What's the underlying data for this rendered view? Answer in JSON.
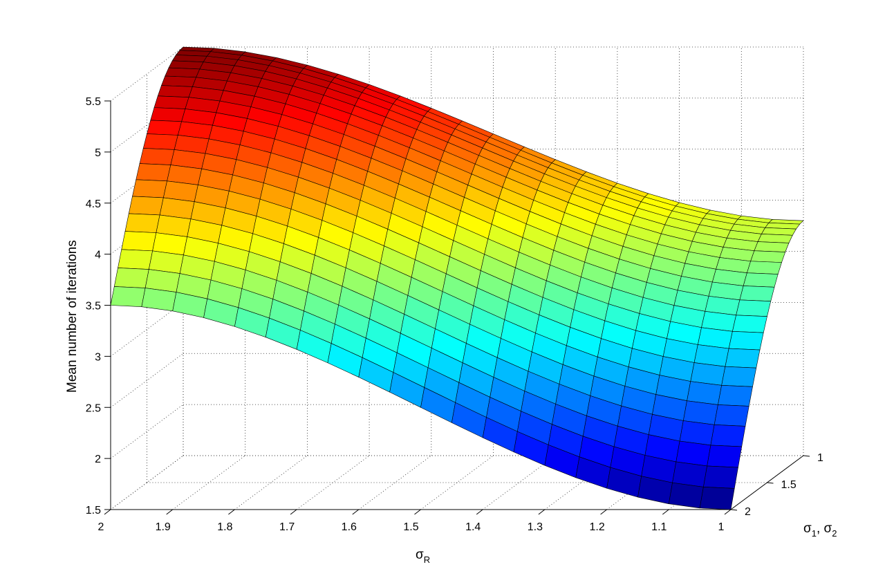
{
  "chart_data": {
    "type": "surface",
    "xlabel": {
      "main": "σ",
      "sub": "R"
    },
    "ylabel": {
      "main": "σ",
      "sub1": "1",
      "sep": ", σ",
      "sub2": "2"
    },
    "zlabel": "Mean number of iterations",
    "x_ticks": [
      "2",
      "1.9",
      "1.8",
      "1.7",
      "1.6",
      "1.5",
      "1.4",
      "1.3",
      "1.2",
      "1.1",
      "1"
    ],
    "y_ticks": [
      "2",
      "1.5",
      "1"
    ],
    "z_ticks": [
      "1.5",
      "2",
      "2.5",
      "3",
      "3.5",
      "4",
      "4.5",
      "5",
      "5.5"
    ],
    "xlim": [
      1,
      2
    ],
    "ylim": [
      1,
      2
    ],
    "zlim": [
      1.5,
      5.5
    ],
    "grid": true,
    "colormap": "jet",
    "x": [
      2.0,
      1.95,
      1.9,
      1.85,
      1.8,
      1.75,
      1.7,
      1.65,
      1.6,
      1.55,
      1.5,
      1.45,
      1.4,
      1.35,
      1.3,
      1.25,
      1.2,
      1.15,
      1.1,
      1.05,
      1.0
    ],
    "y": [
      2.0,
      1.95,
      1.9,
      1.85,
      1.8,
      1.75,
      1.7,
      1.65,
      1.6,
      1.55,
      1.5,
      1.45,
      1.4,
      1.35,
      1.3,
      1.25,
      1.2,
      1.15,
      1.1,
      1.05,
      1.0
    ],
    "z_corners": {
      "sigmaR_2_sigma12_2": 3.5,
      "sigmaR_2_sigma12_1": 5.5,
      "sigmaR_1_sigma12_2": 1.5,
      "sigmaR_1_sigma12_1": 3.8,
      "sigmaR_1.5_sigma12_2": 2.95,
      "sigmaR_1.5_sigma12_1": 5.4
    }
  }
}
